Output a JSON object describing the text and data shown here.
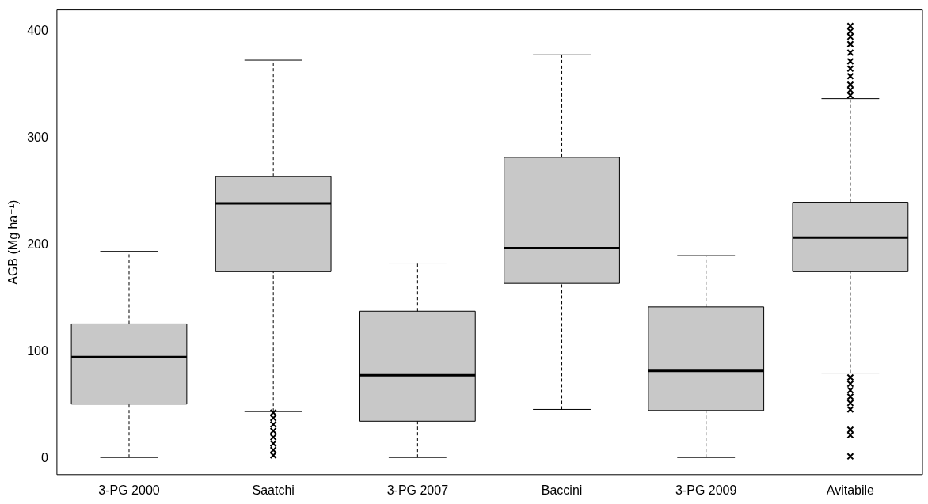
{
  "chart_data": {
    "type": "box",
    "ylabel": "AGB (Mg ha⁻¹)",
    "categories": [
      "3-PG 2000",
      "Saatchi",
      "3-PG 2007",
      "Baccini",
      "3-PG 2009",
      "Avitabile"
    ],
    "color": "#c8c8c8",
    "marker": "cross",
    "grid": false,
    "ylim": [
      -15,
      420
    ],
    "yticks": [
      0,
      100,
      200,
      300,
      400
    ],
    "boxes": [
      {
        "low": 1,
        "q1": 51,
        "median": 95,
        "q3": 126,
        "high": 194
      },
      {
        "low": 44,
        "q1": 175,
        "median": 239,
        "q3": 264,
        "high": 373,
        "outliers": [
          3,
          8,
          14,
          20,
          26,
          32,
          38,
          43
        ]
      },
      {
        "low": 1,
        "q1": 35,
        "median": 78,
        "q3": 138,
        "high": 183
      },
      {
        "low": 46,
        "q1": 164,
        "median": 197,
        "q3": 282,
        "high": 378
      },
      {
        "low": 1,
        "q1": 45,
        "median": 82,
        "q3": 142,
        "high": 190
      },
      {
        "low": 80,
        "q1": 175,
        "median": 207,
        "q3": 240,
        "high": 337,
        "outliers": [
          2,
          22,
          27,
          46,
          52,
          58,
          64,
          70,
          76,
          340,
          345,
          350,
          358,
          365,
          372,
          380,
          388,
          395,
          400,
          405
        ]
      }
    ]
  }
}
